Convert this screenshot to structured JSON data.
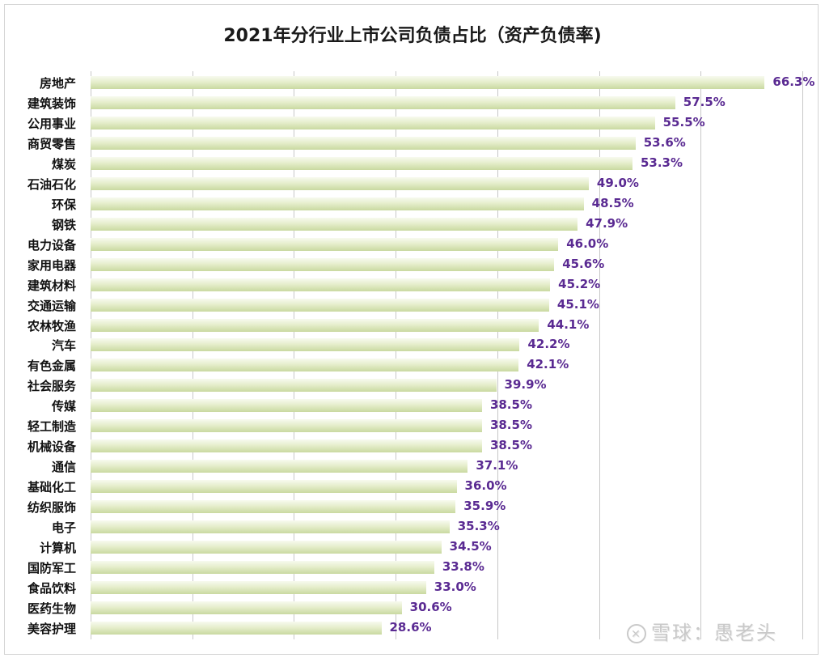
{
  "chart_data": {
    "type": "bar",
    "orientation": "horizontal",
    "title": "2021年分行业上市公司负债占比（资产负债率)",
    "xlabel": "",
    "ylabel": "",
    "xlim": [
      0,
      70
    ],
    "grid": true,
    "gridlines_at": [
      0,
      10,
      20,
      30,
      40,
      50,
      60,
      70
    ],
    "legend": null,
    "value_suffix": "%",
    "categories": [
      "房地产",
      "建筑装饰",
      "公用事业",
      "商贸零售",
      "煤炭",
      "石油石化",
      "环保",
      "钢铁",
      "电力设备",
      "家用电器",
      "建筑材料",
      "交通运输",
      "农林牧渔",
      "汽车",
      "有色金属",
      "社会服务",
      "传媒",
      "轻工制造",
      "机械设备",
      "通信",
      "基础化工",
      "纺织服饰",
      "电子",
      "计算机",
      "国防军工",
      "食品饮料",
      "医药生物",
      "美容护理"
    ],
    "values": [
      66.3,
      57.5,
      55.5,
      53.6,
      53.3,
      49.0,
      48.5,
      47.9,
      46.0,
      45.6,
      45.2,
      45.1,
      44.1,
      42.2,
      42.1,
      39.9,
      38.5,
      38.5,
      38.5,
      37.1,
      36.0,
      35.9,
      35.3,
      34.5,
      33.8,
      33.0,
      30.6,
      28.6
    ],
    "labels": [
      "66.3%",
      "57.5%",
      "55.5%",
      "53.6%",
      "53.3%",
      "49.0%",
      "48.5%",
      "47.9%",
      "46.0%",
      "45.6%",
      "45.2%",
      "45.1%",
      "44.1%",
      "42.2%",
      "42.1%",
      "39.9%",
      "38.5%",
      "38.5%",
      "38.5%",
      "37.1%",
      "36.0%",
      "35.9%",
      "35.3%",
      "34.5%",
      "33.8%",
      "33.0%",
      "30.6%",
      "28.6%"
    ],
    "colors": {
      "bar_top": "#f7faef",
      "bar_bottom": "#c9d9a1",
      "label": "#5a2a92",
      "grid": "#c8c8c8"
    }
  },
  "watermark": {
    "icon": "xueqiu-logo-icon",
    "text": "雪球：愚老头"
  }
}
